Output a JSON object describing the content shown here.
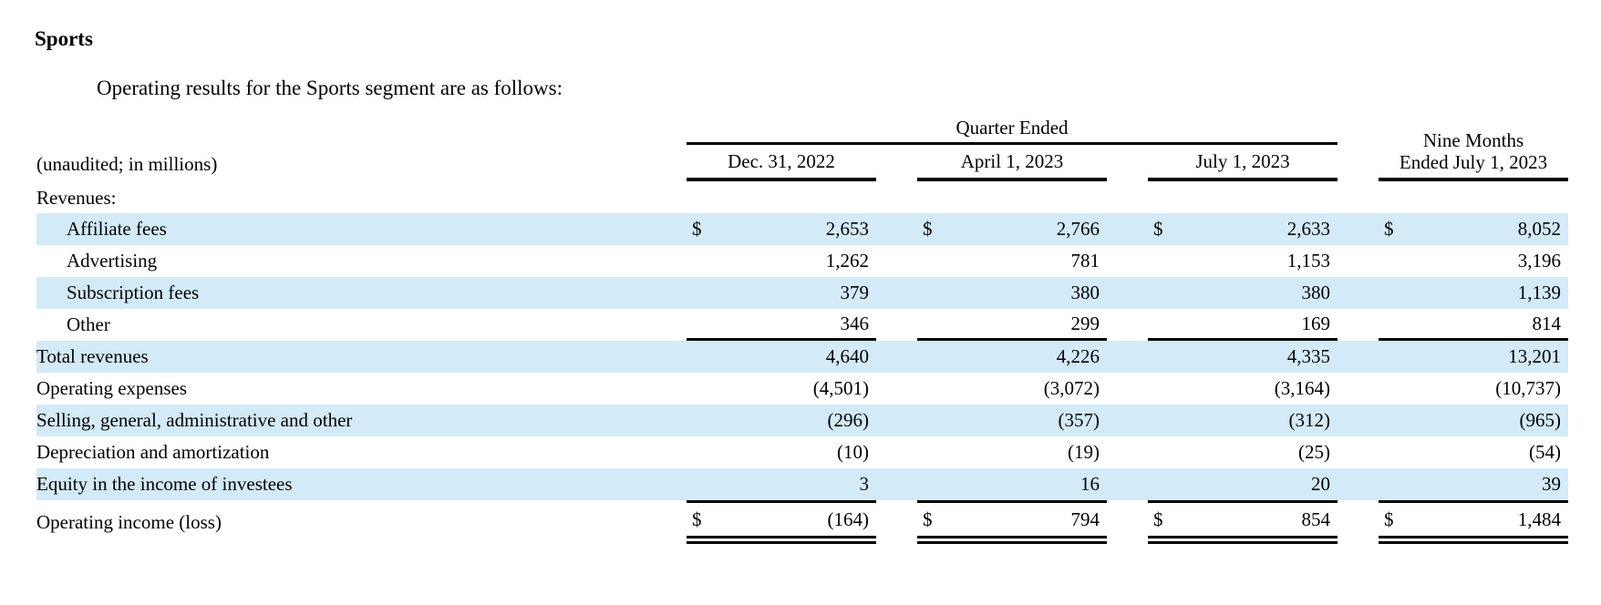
{
  "page": {
    "heading": "Sports",
    "intro": "Operating results for the Sports segment are as follows:"
  },
  "colors": {
    "row_highlight": "#d3eaf8",
    "text": "#000000",
    "background": "#ffffff"
  },
  "table": {
    "unaudited_note": "(unaudited; in millions)",
    "quarter_ended_label": "Quarter Ended",
    "nine_months_label_line1": "Nine Months",
    "nine_months_label_line2": "Ended July 1, 2023",
    "columns": [
      "Dec. 31, 2022",
      "April 1, 2023",
      "July 1, 2023"
    ],
    "nine_months_column": "Nine Months Ended July 1, 2023",
    "section_label": "Revenues:",
    "currency_symbol": "$",
    "rows": [
      {
        "label": "Affiliate fees",
        "indent": true,
        "highlight": true,
        "dollar": true,
        "values": [
          "2,653",
          "2,766",
          "2,633",
          "8,052"
        ]
      },
      {
        "label": "Advertising",
        "indent": true,
        "highlight": false,
        "dollar": false,
        "values": [
          "1,262",
          "781",
          "1,153",
          "3,196"
        ]
      },
      {
        "label": "Subscription fees",
        "indent": true,
        "highlight": true,
        "dollar": false,
        "values": [
          "379",
          "380",
          "380",
          "1,139"
        ]
      },
      {
        "label": "Other",
        "indent": true,
        "highlight": false,
        "dollar": false,
        "rule": "bottom",
        "values": [
          "346",
          "299",
          "169",
          "814"
        ]
      },
      {
        "label": "Total revenues",
        "indent": false,
        "highlight": true,
        "dollar": false,
        "values": [
          "4,640",
          "4,226",
          "4,335",
          "13,201"
        ]
      },
      {
        "label": "Operating expenses",
        "indent": false,
        "highlight": false,
        "dollar": false,
        "values": [
          "(4,501)",
          "(3,072)",
          "(3,164)",
          "(10,737)"
        ]
      },
      {
        "label": "Selling, general, administrative and other",
        "indent": false,
        "highlight": true,
        "dollar": false,
        "values": [
          "(296)",
          "(357)",
          "(312)",
          "(965)"
        ]
      },
      {
        "label": "Depreciation and amortization",
        "indent": false,
        "highlight": false,
        "dollar": false,
        "values": [
          "(10)",
          "(19)",
          "(25)",
          "(54)"
        ]
      },
      {
        "label": "Equity in the income of investees",
        "indent": false,
        "highlight": true,
        "dollar": false,
        "values": [
          "3",
          "16",
          "20",
          "39"
        ]
      },
      {
        "label": "Operating income (loss)",
        "indent": false,
        "highlight": false,
        "dollar": true,
        "rule": "total",
        "values": [
          "(164)",
          "794",
          "854",
          "1,484"
        ]
      }
    ]
  }
}
